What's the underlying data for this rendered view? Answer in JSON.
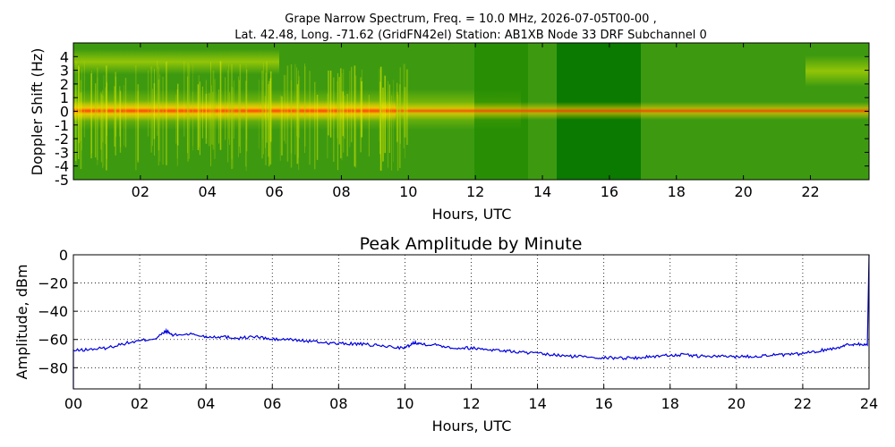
{
  "chart_data": [
    {
      "type": "heatmap",
      "title_lines": [
        "Grape Narrow Spectrum, Freq. = 10.0 MHz, 2026-07-05T00-00 ,",
        "Lat.  42.48, Long. -71.62 (GridFN42el) Station: AB1XB Node 33 DRF Subchannel 0"
      ],
      "xlabel": "Hours, UTC",
      "ylabel": "Doppler Shift (Hz)",
      "xlim": [
        0,
        23.75
      ],
      "ylim": [
        -5,
        5
      ],
      "x_ticks": [
        2,
        4,
        6,
        8,
        10,
        12,
        14,
        16,
        18,
        20,
        22
      ],
      "x_tick_labels": [
        "02",
        "04",
        "06",
        "08",
        "10",
        "12",
        "14",
        "16",
        "18",
        "20",
        "22"
      ],
      "y_ticks": [
        -5,
        -4,
        -3,
        -2,
        -1,
        0,
        1,
        2,
        3,
        4
      ],
      "y_tick_labels": [
        "-5",
        "-4",
        "-3",
        "-2",
        "-1",
        "0",
        "1",
        "2",
        "3",
        "4"
      ],
      "colormap": [
        "#007a00",
        "#3a9a00",
        "#8fc400",
        "#d9e600",
        "#ffee00",
        "#ff9900",
        "#ff3300"
      ],
      "background_color": "#3d9a10"
    },
    {
      "type": "line",
      "title": "Peak Amplitude by Minute",
      "xlabel": "Hours, UTC",
      "ylabel": "Amplitude, dBm",
      "xlim": [
        0,
        24
      ],
      "ylim": [
        -95,
        0
      ],
      "grid": true,
      "x_ticks": [
        0,
        2,
        4,
        6,
        8,
        10,
        12,
        14,
        16,
        18,
        20,
        22,
        24
      ],
      "x_tick_labels": [
        "00",
        "02",
        "04",
        "06",
        "08",
        "10",
        "12",
        "14",
        "16",
        "18",
        "20",
        "22",
        "24"
      ],
      "y_ticks": [
        0,
        -20,
        -40,
        -60,
        -80
      ],
      "y_tick_labels": [
        "0",
        "−20",
        "−40",
        "−60",
        "−80"
      ],
      "line_color": "#0000dd",
      "series": [
        {
          "x": [
            0,
            0.5,
            1,
            1.5,
            2,
            2.5,
            2.8,
            3,
            3.5,
            4,
            4.5,
            5,
            5.5,
            6,
            6.5,
            7,
            7.5,
            8,
            8.5,
            9,
            9.5,
            10,
            10.3,
            10.5,
            11,
            11.5,
            12,
            12.5,
            13,
            13.5,
            14,
            14.5,
            15,
            15.5,
            16,
            16.5,
            17,
            17.5,
            18,
            18.5,
            19,
            19.5,
            20,
            20.5,
            21,
            21.5,
            22,
            22.5,
            23,
            23.3,
            23.6,
            23.95
          ],
          "y": [
            -68,
            -67,
            -66,
            -63,
            -61,
            -59,
            -54,
            -57,
            -56,
            -58,
            -58,
            -59,
            -58,
            -60,
            -60,
            -61,
            -62,
            -63,
            -63,
            -64,
            -65,
            -66,
            -62,
            -63,
            -64,
            -66,
            -66,
            -67,
            -68,
            -69,
            -70,
            -71,
            -72,
            -72,
            -73,
            -73,
            -73,
            -72,
            -71,
            -71,
            -72,
            -72,
            -72,
            -72,
            -71,
            -71,
            -70,
            -68,
            -66,
            -64,
            -63,
            -64
          ]
        }
      ]
    }
  ]
}
